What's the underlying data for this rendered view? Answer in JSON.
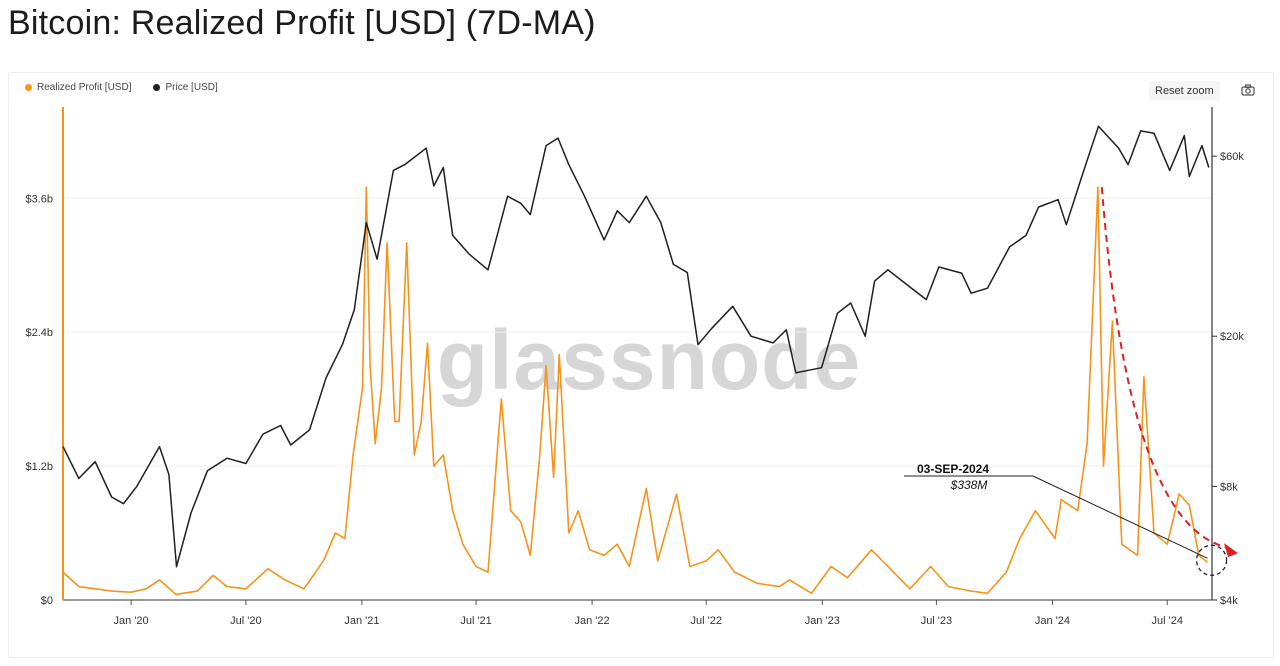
{
  "title": "Bitcoin: Realized Profit [USD] (7D-MA)",
  "toolbar": {
    "reset_zoom": "Reset zoom"
  },
  "icons": {
    "camera": "camera-icon"
  },
  "watermark": "glassnode",
  "chart_data": {
    "type": "line",
    "legend_position": "top-left",
    "grid": true,
    "x_ticks": [
      "Jan '20",
      "Jul '20",
      "Jan '21",
      "Jul '21",
      "Jan '22",
      "Jul '22",
      "Jan '23",
      "Jul '23",
      "Jan '24",
      "Jul '24"
    ],
    "x_range": [
      "2019-09-15",
      "2024-09-10"
    ],
    "y_left": {
      "ticks": [
        "$0",
        "$1.2b",
        "$2.4b",
        "$3.6b"
      ],
      "range": [
        0,
        4.4
      ],
      "unit": "b USD"
    },
    "y_right": {
      "ticks": [
        "$4k",
        "$8k",
        "$20k",
        "$60k"
      ],
      "scale": "log",
      "range": [
        4000,
        80000
      ]
    },
    "series": [
      {
        "name": "Realized Profit [USD]",
        "color": "#f7931a",
        "axis": "left",
        "points": [
          [
            "2019-09-15",
            0.25
          ],
          [
            "2019-10-10",
            0.12
          ],
          [
            "2019-11-05",
            0.1
          ],
          [
            "2019-12-01",
            0.08
          ],
          [
            "2020-01-01",
            0.07
          ],
          [
            "2020-01-25",
            0.1
          ],
          [
            "2020-02-15",
            0.18
          ],
          [
            "2020-03-12",
            0.05
          ],
          [
            "2020-04-15",
            0.08
          ],
          [
            "2020-05-10",
            0.22
          ],
          [
            "2020-06-01",
            0.12
          ],
          [
            "2020-07-01",
            0.1
          ],
          [
            "2020-08-05",
            0.28
          ],
          [
            "2020-09-01",
            0.18
          ],
          [
            "2020-10-01",
            0.1
          ],
          [
            "2020-11-01",
            0.35
          ],
          [
            "2020-11-20",
            0.6
          ],
          [
            "2020-12-05",
            0.55
          ],
          [
            "2020-12-18",
            1.3
          ],
          [
            "2021-01-02",
            1.9
          ],
          [
            "2021-01-08",
            3.7
          ],
          [
            "2021-01-14",
            2.1
          ],
          [
            "2021-01-22",
            1.4
          ],
          [
            "2021-02-01",
            1.9
          ],
          [
            "2021-02-10",
            3.2
          ],
          [
            "2021-02-22",
            1.6
          ],
          [
            "2021-03-01",
            1.6
          ],
          [
            "2021-03-13",
            3.2
          ],
          [
            "2021-03-25",
            1.3
          ],
          [
            "2021-04-05",
            1.6
          ],
          [
            "2021-04-15",
            2.3
          ],
          [
            "2021-04-25",
            1.2
          ],
          [
            "2021-05-10",
            1.3
          ],
          [
            "2021-05-25",
            0.8
          ],
          [
            "2021-06-10",
            0.5
          ],
          [
            "2021-07-01",
            0.3
          ],
          [
            "2021-07-20",
            0.25
          ],
          [
            "2021-08-10",
            1.8
          ],
          [
            "2021-08-25",
            0.8
          ],
          [
            "2021-09-10",
            0.7
          ],
          [
            "2021-09-25",
            0.4
          ],
          [
            "2021-10-10",
            1.3
          ],
          [
            "2021-10-20",
            2.1
          ],
          [
            "2021-11-01",
            1.1
          ],
          [
            "2021-11-10",
            2.2
          ],
          [
            "2021-11-25",
            0.6
          ],
          [
            "2021-12-10",
            0.8
          ],
          [
            "2021-12-28",
            0.45
          ],
          [
            "2022-01-20",
            0.4
          ],
          [
            "2022-02-10",
            0.5
          ],
          [
            "2022-03-01",
            0.3
          ],
          [
            "2022-03-28",
            1.0
          ],
          [
            "2022-04-15",
            0.35
          ],
          [
            "2022-05-15",
            0.95
          ],
          [
            "2022-06-05",
            0.3
          ],
          [
            "2022-07-01",
            0.35
          ],
          [
            "2022-07-20",
            0.45
          ],
          [
            "2022-08-15",
            0.25
          ],
          [
            "2022-09-20",
            0.15
          ],
          [
            "2022-10-25",
            0.12
          ],
          [
            "2022-11-10",
            0.18
          ],
          [
            "2022-12-15",
            0.06
          ],
          [
            "2023-01-15",
            0.3
          ],
          [
            "2023-02-10",
            0.2
          ],
          [
            "2023-03-20",
            0.45
          ],
          [
            "2023-04-15",
            0.3
          ],
          [
            "2023-05-20",
            0.1
          ],
          [
            "2023-06-22",
            0.3
          ],
          [
            "2023-07-20",
            0.12
          ],
          [
            "2023-08-25",
            0.08
          ],
          [
            "2023-09-20",
            0.06
          ],
          [
            "2023-10-20",
            0.25
          ],
          [
            "2023-11-10",
            0.55
          ],
          [
            "2023-12-05",
            0.8
          ],
          [
            "2024-01-05",
            0.55
          ],
          [
            "2024-01-15",
            0.9
          ],
          [
            "2024-02-10",
            0.8
          ],
          [
            "2024-02-25",
            1.4
          ],
          [
            "2024-03-13",
            3.7
          ],
          [
            "2024-03-22",
            1.2
          ],
          [
            "2024-04-05",
            2.5
          ],
          [
            "2024-04-20",
            0.5
          ],
          [
            "2024-05-15",
            0.4
          ],
          [
            "2024-05-25",
            2.0
          ],
          [
            "2024-06-10",
            0.6
          ],
          [
            "2024-07-01",
            0.5
          ],
          [
            "2024-07-20",
            0.95
          ],
          [
            "2024-08-05",
            0.85
          ],
          [
            "2024-08-20",
            0.4
          ],
          [
            "2024-09-03",
            0.338
          ]
        ]
      },
      {
        "name": "Price [USD]",
        "color": "#1f1f1f",
        "axis": "right",
        "points": [
          [
            "2019-09-15",
            10200
          ],
          [
            "2019-10-10",
            8400
          ],
          [
            "2019-11-05",
            9300
          ],
          [
            "2019-12-01",
            7500
          ],
          [
            "2019-12-20",
            7200
          ],
          [
            "2020-01-10",
            8000
          ],
          [
            "2020-02-15",
            10200
          ],
          [
            "2020-03-01",
            8600
          ],
          [
            "2020-03-13",
            4900
          ],
          [
            "2020-04-05",
            6800
          ],
          [
            "2020-05-01",
            8800
          ],
          [
            "2020-06-01",
            9500
          ],
          [
            "2020-07-01",
            9200
          ],
          [
            "2020-07-28",
            11000
          ],
          [
            "2020-08-25",
            11600
          ],
          [
            "2020-09-10",
            10300
          ],
          [
            "2020-10-10",
            11300
          ],
          [
            "2020-11-05",
            15500
          ],
          [
            "2020-12-01",
            19000
          ],
          [
            "2020-12-20",
            23500
          ],
          [
            "2021-01-08",
            40000
          ],
          [
            "2021-01-25",
            32000
          ],
          [
            "2021-02-20",
            55000
          ],
          [
            "2021-03-10",
            57000
          ],
          [
            "2021-04-13",
            63000
          ],
          [
            "2021-04-25",
            50000
          ],
          [
            "2021-05-10",
            56000
          ],
          [
            "2021-05-25",
            37000
          ],
          [
            "2021-06-20",
            33000
          ],
          [
            "2021-07-20",
            30000
          ],
          [
            "2021-08-20",
            47000
          ],
          [
            "2021-09-10",
            45000
          ],
          [
            "2021-09-25",
            42000
          ],
          [
            "2021-10-20",
            64000
          ],
          [
            "2021-11-08",
            67000
          ],
          [
            "2021-11-25",
            57000
          ],
          [
            "2021-12-20",
            47000
          ],
          [
            "2022-01-20",
            36000
          ],
          [
            "2022-02-10",
            43000
          ],
          [
            "2022-03-01",
            40000
          ],
          [
            "2022-03-28",
            47000
          ],
          [
            "2022-04-20",
            40000
          ],
          [
            "2022-05-10",
            31000
          ],
          [
            "2022-06-01",
            29500
          ],
          [
            "2022-06-18",
            19000
          ],
          [
            "2022-07-10",
            21000
          ],
          [
            "2022-08-12",
            24000
          ],
          [
            "2022-09-10",
            20000
          ],
          [
            "2022-10-15",
            19200
          ],
          [
            "2022-11-05",
            20800
          ],
          [
            "2022-11-20",
            16000
          ],
          [
            "2022-12-31",
            16500
          ],
          [
            "2023-01-25",
            23000
          ],
          [
            "2023-02-15",
            24500
          ],
          [
            "2023-03-10",
            20000
          ],
          [
            "2023-03-25",
            28000
          ],
          [
            "2023-04-15",
            30000
          ],
          [
            "2023-05-20",
            27000
          ],
          [
            "2023-06-15",
            25000
          ],
          [
            "2023-07-05",
            30500
          ],
          [
            "2023-08-10",
            29400
          ],
          [
            "2023-08-25",
            26000
          ],
          [
            "2023-09-20",
            26800
          ],
          [
            "2023-10-25",
            34500
          ],
          [
            "2023-11-20",
            37000
          ],
          [
            "2023-12-10",
            44000
          ],
          [
            "2024-01-10",
            46000
          ],
          [
            "2024-01-23",
            39500
          ],
          [
            "2024-02-15",
            52000
          ],
          [
            "2024-03-01",
            62000
          ],
          [
            "2024-03-14",
            72000
          ],
          [
            "2024-04-15",
            63000
          ],
          [
            "2024-04-30",
            57000
          ],
          [
            "2024-05-20",
            70000
          ],
          [
            "2024-06-10",
            69000
          ],
          [
            "2024-07-05",
            55000
          ],
          [
            "2024-07-28",
            68000
          ],
          [
            "2024-08-05",
            53000
          ],
          [
            "2024-08-25",
            64000
          ],
          [
            "2024-09-05",
            56000
          ]
        ]
      }
    ],
    "annotations": [
      {
        "date": "03-SEP-2024",
        "value": "$338M",
        "x": "2024-09-03",
        "y": 0.338
      }
    ]
  }
}
